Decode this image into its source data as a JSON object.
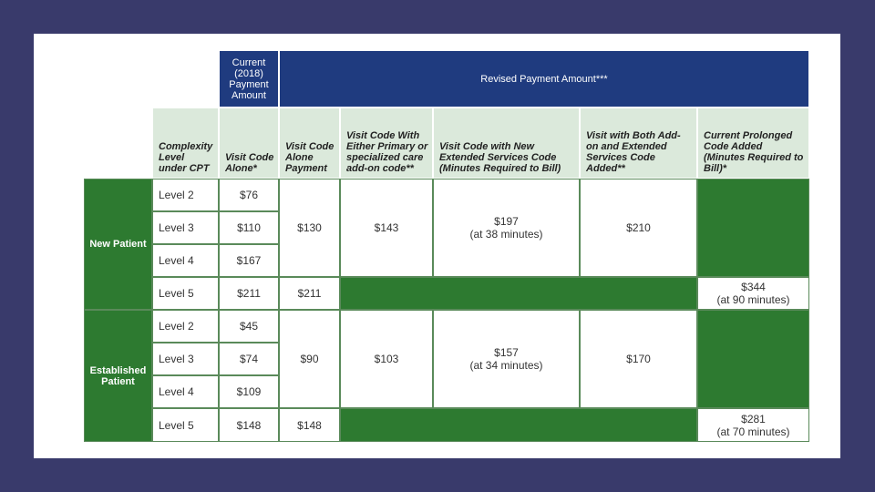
{
  "header": {
    "current": "Current (2018) Payment Amount",
    "revised": "Revised Payment Amount***"
  },
  "columns": [
    "Complexity Level under CPT",
    "Visit Code Alone*",
    "Visit Code Alone Payment",
    "Visit Code With Either Primary or specialized care add-on code**",
    "Visit Code with New Extended Services Code (Minutes Required to Bill)",
    "Visit with Both Add-on and Extended Services Code Added**",
    "Current Prolonged Code Added (Minutes Required to Bill)*"
  ],
  "groups": [
    {
      "label": "New Patient",
      "levels": [
        {
          "level": "Level 2",
          "current": "$76"
        },
        {
          "level": "Level 3",
          "current": "$110"
        },
        {
          "level": "Level 4",
          "current": "$167"
        },
        {
          "level": "Level 5",
          "current": "$211"
        }
      ],
      "visit_code": "$130",
      "level5_visit_code": "$211",
      "primary_addon": "$143",
      "extended": "$197",
      "extended_note": "(at 38 minutes)",
      "both": "$210",
      "prolonged": "$344",
      "prolonged_note": "(at 90 minutes)"
    },
    {
      "label": "Established Patient",
      "levels": [
        {
          "level": "Level 2",
          "current": "$45"
        },
        {
          "level": "Level 3",
          "current": "$74"
        },
        {
          "level": "Level 4",
          "current": "$109"
        },
        {
          "level": "Level 5",
          "current": "$148"
        }
      ],
      "visit_code": "$90",
      "level5_visit_code": "$148",
      "primary_addon": "$103",
      "extended": "$157",
      "extended_note": "(at 34 minutes)",
      "both": "$170",
      "prolonged": "$281",
      "prolonged_note": "(at 70 minutes)"
    }
  ]
}
